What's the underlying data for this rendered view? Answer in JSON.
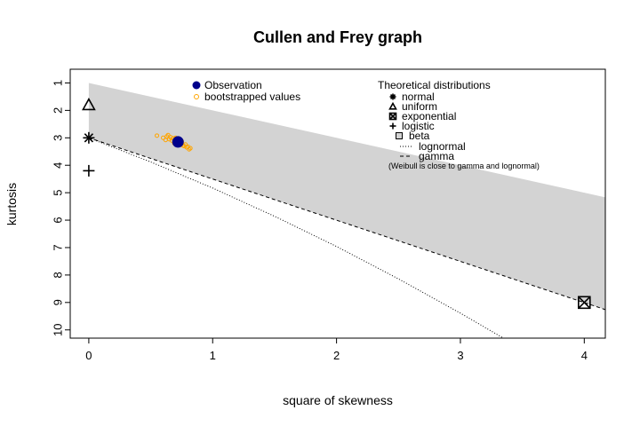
{
  "chart_data": {
    "type": "scatter",
    "title": "Cullen and Frey graph",
    "xlabel": "square of skewness",
    "ylabel": "kurtosis",
    "xlim": [
      -0.15,
      4.17
    ],
    "ylim": [
      10.3,
      0.5
    ],
    "x_ticks": [
      0,
      1,
      2,
      3,
      4
    ],
    "y_ticks": [
      1,
      2,
      3,
      4,
      5,
      6,
      7,
      8,
      9,
      10
    ],
    "y_axis_reversed": true,
    "grid": false,
    "colors": {
      "beta_region": "#d3d3d3",
      "observation": "#00008b",
      "bootstrap": "#ffa500",
      "lines": "#000000"
    },
    "beta_region": {
      "upper": [
        [
          0,
          1
        ],
        [
          4.17,
          5.17
        ]
      ],
      "lower": [
        [
          0,
          3
        ],
        [
          4.17,
          9.26
        ]
      ]
    },
    "observation": {
      "label": "Observation",
      "x": 0.72,
      "y": 3.15
    },
    "bootstrap": {
      "label": "bootstrapped values",
      "points": [
        [
          0.55,
          2.92
        ],
        [
          0.6,
          3.0
        ],
        [
          0.63,
          2.95
        ],
        [
          0.65,
          3.05
        ],
        [
          0.66,
          2.98
        ],
        [
          0.67,
          3.1
        ],
        [
          0.68,
          3.02
        ],
        [
          0.69,
          3.12
        ],
        [
          0.7,
          3.0
        ],
        [
          0.71,
          3.18
        ],
        [
          0.72,
          3.08
        ],
        [
          0.73,
          3.22
        ],
        [
          0.74,
          3.14
        ],
        [
          0.75,
          3.2
        ],
        [
          0.76,
          3.28
        ],
        [
          0.77,
          3.3
        ],
        [
          0.78,
          3.24
        ],
        [
          0.79,
          3.35
        ],
        [
          0.8,
          3.32
        ],
        [
          0.81,
          3.42
        ],
        [
          0.82,
          3.38
        ],
        [
          0.62,
          3.08
        ],
        [
          0.64,
          2.9
        ],
        [
          0.69,
          3.2
        ],
        [
          0.75,
          3.12
        ]
      ]
    },
    "theoretical_points": [
      {
        "name": "normal",
        "x": 0,
        "y": 3,
        "marker": "asterisk"
      },
      {
        "name": "uniform",
        "x": 0,
        "y": 1.8,
        "marker": "triangle"
      },
      {
        "name": "exponential",
        "x": 4,
        "y": 9,
        "marker": "box-x"
      },
      {
        "name": "logistic",
        "x": 0,
        "y": 4.2,
        "marker": "plus"
      }
    ],
    "lognormal_line": [
      [
        0,
        3
      ],
      [
        0.5,
        3.88
      ],
      [
        1,
        4.83
      ],
      [
        1.5,
        5.86
      ],
      [
        2,
        6.96
      ],
      [
        2.5,
        8.14
      ],
      [
        3,
        9.39
      ],
      [
        3.5,
        10.7
      ]
    ],
    "gamma_line": [
      [
        0,
        3
      ],
      [
        4.17,
        9.26
      ]
    ],
    "legend": {
      "obs_title": "",
      "items_obs": [
        {
          "label": "Observation",
          "marker": "filled-circle"
        },
        {
          "label": "bootstrapped values",
          "marker": "open-circle"
        }
      ],
      "theo_title": "Theoretical distributions",
      "items_theo": [
        {
          "label": "normal",
          "marker": "asterisk"
        },
        {
          "label": "uniform",
          "marker": "triangle"
        },
        {
          "label": "exponential",
          "marker": "box-x"
        },
        {
          "label": "logistic",
          "marker": "plus"
        },
        {
          "label": "beta",
          "marker": "square"
        },
        {
          "label": "lognormal",
          "marker": "dotted-line"
        },
        {
          "label": "gamma",
          "marker": "dashed-line"
        }
      ],
      "note": "(Weibull is close to gamma and lognormal)"
    }
  }
}
